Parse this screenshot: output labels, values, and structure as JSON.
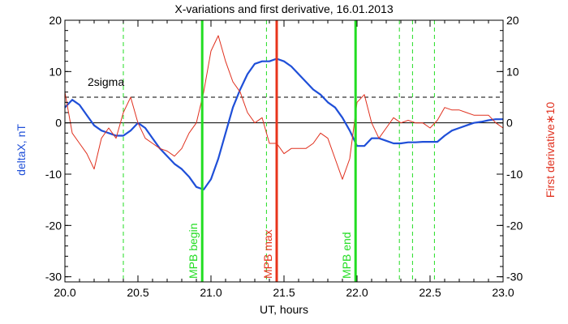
{
  "chart_data": {
    "type": "line",
    "title": "X-variations and first derivative, 16.01.2013",
    "xlabel": "UT, hours",
    "ylabel_left": "deltaX, nT",
    "ylabel_right": "First derivative∗10",
    "xlim": [
      20.0,
      23.0
    ],
    "ylim": [
      -31,
      20
    ],
    "x_ticks": [
      20.0,
      20.5,
      21.0,
      21.5,
      22.0,
      22.5,
      23.0
    ],
    "x_tick_labels": [
      "20.0",
      "20.5",
      "21.0",
      "21.5",
      "22.0",
      "22.5",
      "23.0"
    ],
    "y_ticks": [
      20,
      10,
      0,
      -10,
      -20,
      -30
    ],
    "y_tick_labels": [
      "20",
      "10",
      "0",
      "-10",
      "-20",
      "-30"
    ],
    "grid": false,
    "colors": {
      "deltaX": "#1f4fd8",
      "derivative": "#e0301e",
      "mpb_line": "#22dd22",
      "max_line": "#e8341c",
      "sigma": "#000000"
    },
    "series": [
      {
        "axis": "left",
        "x": [
          20.0,
          20.05,
          20.1,
          20.15,
          20.2,
          20.25,
          20.3,
          20.35,
          20.4,
          20.45,
          20.5,
          20.55,
          20.6,
          20.65,
          20.7,
          20.75,
          20.8,
          20.85,
          20.9,
          20.95,
          21.0,
          21.05,
          21.1,
          21.15,
          21.2,
          21.25,
          21.3,
          21.35,
          21.4,
          21.45,
          21.5,
          21.55,
          21.6,
          21.65,
          21.7,
          21.75,
          21.8,
          21.85,
          21.9,
          21.95,
          22.0,
          22.05,
          22.1,
          22.15,
          22.2,
          22.25,
          22.3,
          22.35,
          22.4,
          22.45,
          22.5,
          22.55,
          22.6,
          22.65,
          22.7,
          22.75,
          22.8,
          22.85,
          22.9,
          22.95,
          23.0
        ],
        "values": [
          3,
          4.5,
          3.5,
          1.5,
          -0.5,
          -1.5,
          -2,
          -2.5,
          -2.5,
          -1.5,
          0,
          -1,
          -3,
          -5,
          -6.5,
          -8,
          -9,
          -10.5,
          -12.5,
          -13,
          -11,
          -7,
          -2,
          3,
          6.5,
          9.5,
          11.5,
          12,
          12,
          12.5,
          12,
          11,
          9.5,
          8,
          6.5,
          5.5,
          4,
          3,
          1,
          -1.5,
          -4.5,
          -4.5,
          -3,
          -3,
          -3.5,
          -4,
          -4,
          -3.8,
          -3.8,
          -3.7,
          -3.7,
          -3.7,
          -2.5,
          -1.5,
          -1,
          -0.5,
          0,
          0.2,
          0.5,
          0.7,
          0.7
        ]
      },
      {
        "axis": "right",
        "x": [
          20.0,
          20.05,
          20.1,
          20.15,
          20.2,
          20.25,
          20.3,
          20.35,
          20.4,
          20.45,
          20.5,
          20.55,
          20.6,
          20.65,
          20.7,
          20.75,
          20.8,
          20.85,
          20.9,
          20.95,
          21.0,
          21.05,
          21.1,
          21.15,
          21.2,
          21.25,
          21.3,
          21.35,
          21.4,
          21.45,
          21.5,
          21.55,
          21.6,
          21.65,
          21.7,
          21.75,
          21.8,
          21.85,
          21.9,
          21.95,
          22.0,
          22.05,
          22.1,
          22.15,
          22.2,
          22.25,
          22.3,
          22.35,
          22.4,
          22.45,
          22.5,
          22.55,
          22.6,
          22.65,
          22.7,
          22.75,
          22.8,
          22.85,
          22.9,
          22.95,
          23.0
        ],
        "values": [
          6,
          -2,
          -4,
          -6,
          -9,
          -3,
          -1,
          -3,
          2,
          5,
          0,
          -3,
          -4,
          -5,
          -5.5,
          -6.5,
          -5,
          -2,
          0,
          6,
          14,
          17,
          12,
          8,
          6,
          2,
          0,
          1,
          -4,
          -4,
          -6,
          -5,
          -5,
          -5,
          -4,
          -2,
          -3,
          -7,
          -11,
          -7,
          4,
          5.5,
          0,
          -3,
          -1,
          1,
          0,
          0.5,
          0,
          0,
          -1,
          0.5,
          3,
          2.5,
          2.5,
          2,
          1.5,
          1.5,
          1.5,
          0,
          -1
        ]
      }
    ],
    "reference_lines": {
      "sigma_y": 5,
      "sigma_label": "2sigma",
      "zero_y": 0,
      "mpb_begin_x": 20.94,
      "mpb_begin_label": "MPB begin",
      "mpb_max_x": 21.45,
      "mpb_max_label": "MPB max",
      "mpb_end_x": 21.99,
      "mpb_end_label": "MPB end",
      "dashed_x": [
        20.4,
        21.38,
        22.29,
        22.38,
        22.53
      ]
    }
  }
}
